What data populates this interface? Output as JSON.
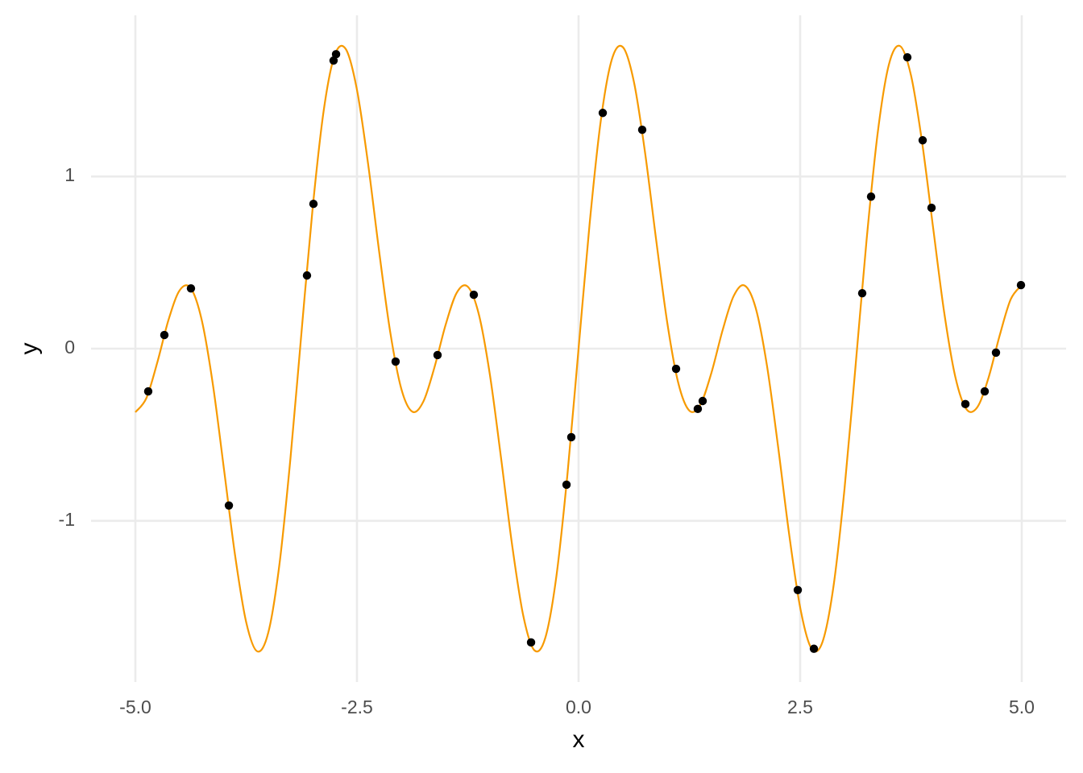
{
  "chart_data": {
    "type": "line",
    "x_label": "x",
    "y_label": "y",
    "xlim": [
      -5.5,
      5.5
    ],
    "ylim": [
      -1.936,
      1.936
    ],
    "xticks": [
      {
        "value": -5,
        "label": "-5.0"
      },
      -2.5,
      {
        "value": 0,
        "label": "0.0"
      },
      2.5,
      {
        "value": 5,
        "label": "5.0"
      }
    ],
    "yticks": [
      -1,
      0,
      1
    ],
    "grid": true,
    "series": [
      {
        "type": "line",
        "color": "#f79a00",
        "x": [
          -5,
          -4.875,
          -4.75,
          -4.625,
          -4.5,
          -4.375,
          -4.25,
          -4.125,
          -4,
          -3.875,
          -3.75,
          -3.625,
          -3.5,
          -3.375,
          -3.25,
          -3.125,
          -3,
          -2.875,
          -2.75,
          -2.625,
          -2.5,
          -2.375,
          -2.25,
          -2.125,
          -2,
          -1.875,
          -1.75,
          -1.625,
          -1.5,
          -1.375,
          -1.25,
          -1.125,
          -1,
          -0.875,
          -0.75,
          -0.625,
          -0.5,
          -0.375,
          -0.25,
          -0.125,
          0,
          0.125,
          0.25,
          0.375,
          0.5,
          0.625,
          0.75,
          0.875,
          1,
          1.125,
          1.25,
          1.375,
          1.5,
          1.625,
          1.75,
          1.875,
          2,
          2.125,
          2.25,
          2.375,
          2.5,
          2.625,
          2.75,
          2.875,
          3,
          3.125,
          3.25,
          3.375,
          3.5,
          3.625,
          3.75,
          3.875,
          4,
          4.125,
          4.25,
          4.375,
          4.5,
          4.625,
          4.75,
          4.875,
          5
        ],
        "values": [
          -0.369,
          -0.286,
          -0.075,
          0.169,
          0.339,
          0.351,
          0.163,
          -0.21,
          -0.702,
          -1.201,
          -1.588,
          -1.758,
          -1.648,
          -1.254,
          -0.635,
          0.1,
          0.816,
          1.384,
          1.706,
          1.739,
          1.503,
          1.075,
          0.565,
          0.097,
          -0.233,
          -0.366,
          -0.306,
          -0.107,
          0.138,
          0.324,
          0.36,
          0.199,
          -0.153,
          -0.633,
          -1.139,
          -1.548,
          -1.751,
          -1.679,
          -1.321,
          -0.727,
          0,
          0.727,
          1.321,
          1.679,
          1.751,
          1.548,
          1.139,
          0.633,
          0.153,
          -0.199,
          -0.36,
          -0.324,
          -0.138,
          0.107,
          0.306,
          0.366,
          0.233,
          -0.097,
          -0.565,
          -1.075,
          -1.503,
          -1.739,
          -1.706,
          -1.384,
          -0.816,
          -0.1,
          0.635,
          1.254,
          1.648,
          1.758,
          1.588,
          1.201,
          0.702,
          0.21,
          -0.163,
          -0.351,
          -0.339,
          -0.169,
          0.075,
          0.286,
          0.369
        ]
      },
      {
        "type": "scatter",
        "color": "#000000",
        "x": [
          -4.855,
          -4.673,
          -4.373,
          -3.945,
          -3.064,
          -2.991,
          -2.764,
          -2.736,
          -2.064,
          -1.591,
          -1.182,
          -0.536,
          -0.136,
          -0.082,
          0.273,
          0.718,
          1.1,
          1.345,
          1.4,
          2.473,
          2.655,
          3.2,
          3.3,
          3.709,
          3.882,
          3.982,
          4.364,
          4.582,
          4.709,
          4.991
        ],
        "values": [
          -0.248,
          0.079,
          0.35,
          -0.911,
          0.425,
          0.841,
          1.673,
          1.71,
          -0.075,
          -0.037,
          0.313,
          -1.706,
          -0.79,
          -0.514,
          1.369,
          1.271,
          -0.117,
          -0.35,
          -0.304,
          -1.402,
          -1.743,
          0.322,
          0.883,
          1.692,
          1.21,
          0.818,
          -0.322,
          -0.248,
          -0.023,
          0.369
        ]
      }
    ]
  }
}
